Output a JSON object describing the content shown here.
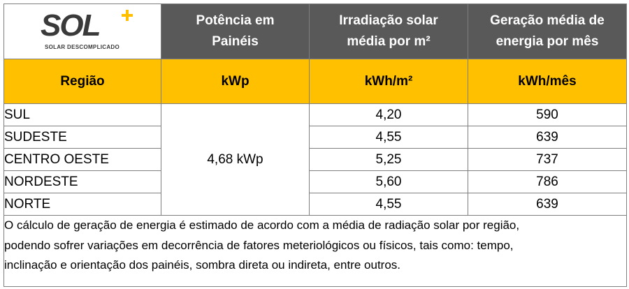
{
  "logo": {
    "wordmark": "SOL",
    "tagline": "SOLAR DESCOMPLICADO",
    "accent_color": "#ffc000"
  },
  "header": {
    "col_power": [
      "Potência em",
      "Painéis"
    ],
    "col_irradiation": [
      "Irradiação solar",
      "média por m²"
    ],
    "col_generation": [
      "Geração média de",
      "energia por mês"
    ]
  },
  "units": {
    "region": "Região",
    "power": "kWp",
    "irradiation": "kWh/m²",
    "generation": "kWh/mês"
  },
  "power_value": "4,68 kWp",
  "rows": [
    {
      "region": "SUL",
      "irradiation": "4,20",
      "generation": "590"
    },
    {
      "region": "SUDESTE",
      "irradiation": "4,55",
      "generation": "639"
    },
    {
      "region": "CENTRO OESTE",
      "irradiation": "5,25",
      "generation": "737"
    },
    {
      "region": "NORDESTE",
      "irradiation": "5,60",
      "generation": "786"
    },
    {
      "region": "NORTE",
      "irradiation": "4,55",
      "generation": "639"
    }
  ],
  "note": [
    "O cálculo de geração de energia é estimado de acordo com a média de radiação solar por região,",
    "podendo sofrer variações em decorrência de fatores meteriológicos ou físicos, tais como: tempo,",
    "inclinação e orientação dos painéis, sombra direta ou indireta, entre outros."
  ],
  "colors": {
    "header_dark": "#595959",
    "header_gold": "#ffc000",
    "border": "#7f7f7f"
  }
}
